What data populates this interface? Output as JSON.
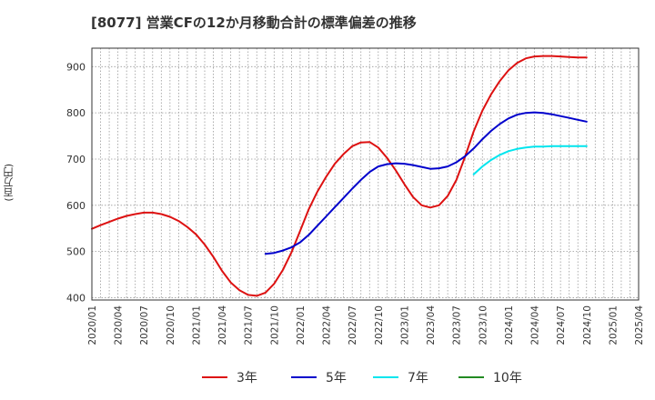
{
  "title": "[8077]  営業CFの12か月移動合計の標準偏差の推移",
  "y_unit_label": "(百万円)",
  "chart_data": {
    "type": "line",
    "title": "[8077]  営業CFの12か月移動合計の標準偏差の推移",
    "xlabel": "",
    "ylabel": "(百万円)",
    "ylim": [
      395,
      940
    ],
    "yticks": [
      400,
      500,
      600,
      700,
      800,
      900
    ],
    "xticks": [
      "2020/01",
      "2020/04",
      "2020/07",
      "2020/10",
      "2021/01",
      "2021/04",
      "2021/07",
      "2021/10",
      "2022/01",
      "2022/04",
      "2022/07",
      "2022/10",
      "2023/01",
      "2023/04",
      "2023/07",
      "2023/10",
      "2024/01",
      "2024/04",
      "2024/07",
      "2024/10",
      "2025/01",
      "2025/04"
    ],
    "x_range": [
      "2020/01",
      "2025/04"
    ],
    "grid": true,
    "legend_position": "bottom",
    "series": [
      {
        "name": "3年",
        "color": "#dd1111",
        "x": [
          "2020/01",
          "2020/02",
          "2020/03",
          "2020/04",
          "2020/05",
          "2020/06",
          "2020/07",
          "2020/08",
          "2020/09",
          "2020/10",
          "2020/11",
          "2020/12",
          "2021/01",
          "2021/02",
          "2021/03",
          "2021/04",
          "2021/05",
          "2021/06",
          "2021/07",
          "2021/08",
          "2021/09",
          "2021/10",
          "2021/11",
          "2021/12",
          "2022/01",
          "2022/02",
          "2022/03",
          "2022/04",
          "2022/05",
          "2022/06",
          "2022/07",
          "2022/08",
          "2022/09",
          "2022/10",
          "2022/11",
          "2022/12",
          "2023/01",
          "2023/02",
          "2023/03",
          "2023/04",
          "2023/05",
          "2023/06",
          "2023/07",
          "2023/08",
          "2023/09",
          "2023/10",
          "2023/11",
          "2023/12",
          "2024/01",
          "2024/02",
          "2024/03",
          "2024/04",
          "2024/05",
          "2024/06",
          "2024/07",
          "2024/08",
          "2024/09",
          "2024/10"
        ],
        "values": [
          549,
          557,
          564,
          571,
          577,
          581,
          584,
          584,
          581,
          575,
          566,
          553,
          537,
          515,
          488,
          458,
          433,
          416,
          406,
          404,
          411,
          430,
          460,
          498,
          545,
          592,
          630,
          662,
          690,
          711,
          728,
          736,
          737,
          725,
          703,
          676,
          646,
          618,
          600,
          595,
          600,
          620,
          655,
          705,
          760,
          805,
          840,
          869,
          892,
          908,
          918,
          922,
          923,
          923,
          922,
          921,
          920,
          920
        ]
      },
      {
        "name": "5年",
        "color": "#0000cc",
        "x": [
          "2021/09",
          "2021/10",
          "2021/11",
          "2021/12",
          "2022/01",
          "2022/02",
          "2022/03",
          "2022/04",
          "2022/05",
          "2022/06",
          "2022/07",
          "2022/08",
          "2022/09",
          "2022/10",
          "2022/11",
          "2022/12",
          "2023/01",
          "2023/02",
          "2023/03",
          "2023/04",
          "2023/05",
          "2023/06",
          "2023/07",
          "2023/08",
          "2023/09",
          "2023/10",
          "2023/11",
          "2023/12",
          "2024/01",
          "2024/02",
          "2024/03",
          "2024/04",
          "2024/05",
          "2024/06",
          "2024/07",
          "2024/08",
          "2024/09",
          "2024/10"
        ],
        "values": [
          495,
          497,
          502,
          509,
          520,
          536,
          556,
          576,
          596,
          616,
          636,
          655,
          672,
          684,
          689,
          691,
          690,
          687,
          683,
          679,
          680,
          684,
          693,
          706,
          723,
          743,
          761,
          776,
          788,
          796,
          800,
          801,
          800,
          797,
          793,
          789,
          785,
          781
        ]
      },
      {
        "name": "7年",
        "color": "#00e5ee",
        "x": [
          "2023/09",
          "2023/10",
          "2023/11",
          "2023/12",
          "2024/01",
          "2024/02",
          "2024/03",
          "2024/04",
          "2024/05",
          "2024/06",
          "2024/07",
          "2024/08",
          "2024/09",
          "2024/10"
        ],
        "values": [
          667,
          684,
          698,
          709,
          717,
          722,
          725,
          727,
          727,
          728,
          728,
          728,
          728,
          728
        ]
      },
      {
        "name": "10年",
        "color": "#228b22",
        "x": [],
        "values": []
      }
    ]
  }
}
